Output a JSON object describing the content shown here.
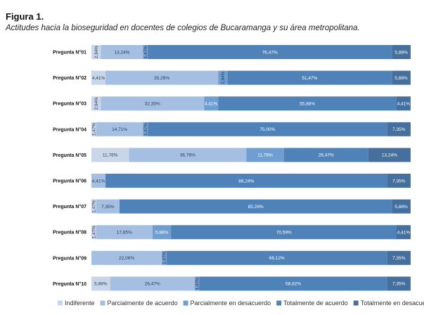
{
  "figure": {
    "label": "Figura 1.",
    "caption": "Actitudes hacia la bioseguridad en docentes de colegios de Bucaramanga y su área metropolitana."
  },
  "colors": {
    "Indiferente": "#c9d6ea",
    "Parcialmente de acuerdo": "#a4bfe2",
    "Parcialmente en desacuerdo": "#6f9fd2",
    "Totalmente de acuerdo": "#4e82b8",
    "Totalmente en desacuerdo": "#456f9c"
  },
  "chart_data": {
    "type": "bar",
    "orientation": "horizontal",
    "stacked": "percent",
    "categories": [
      "Pregunta N°01",
      "Pregunta N°02",
      "Pregunta N°03",
      "Pregunta N°04",
      "Pregunta N°05",
      "Pregunta N°06",
      "Pregunta N°07",
      "Pregunta N°08",
      "Pregunta N°09",
      "Pregunta N°10"
    ],
    "series": [
      {
        "name": "Indiferente",
        "values": [
          2.94,
          4.41,
          2.94,
          1.47,
          11.76,
          0,
          1.47,
          1.47,
          0,
          5.88
        ],
        "labels": [
          "2,94%",
          "4,41%",
          "2,94%",
          "1,47%",
          "11,76%",
          "",
          "1,47%",
          "1,47%",
          "",
          "5,88%"
        ]
      },
      {
        "name": "Parcialmente de acuerdo",
        "values": [
          13.24,
          35.29,
          32.35,
          14.71,
          36.76,
          4.41,
          7.35,
          17.65,
          22.06,
          26.47
        ],
        "labels": [
          "13,24%",
          "35,29%",
          "32,35%",
          "14,71%",
          "36,76%",
          "4,41%",
          "7,35%",
          "17,65%",
          "22,06%",
          "26,47%"
        ]
      },
      {
        "name": "Parcialmente en desacuerdo",
        "values": [
          1.47,
          2.94,
          4.41,
          1.47,
          11.76,
          0,
          0,
          5.88,
          1.47,
          1.47
        ],
        "labels": [
          "1,47%",
          "2,94%",
          "4,41%",
          "1,47%",
          "11,76%",
          "",
          "",
          "5,88%",
          "1,47%",
          "1,47%"
        ]
      },
      {
        "name": "Totalmente de acuerdo",
        "values": [
          76.47,
          51.47,
          55.88,
          75.0,
          26.47,
          88.24,
          85.29,
          70.59,
          69.12,
          58.82
        ],
        "labels": [
          "76,47%",
          "51,47%",
          "55,88%",
          "75,00%",
          "26,47%",
          "88,24%",
          "85,29%",
          "70,59%",
          "69,12%",
          "58,82%"
        ]
      },
      {
        "name": "Totalmente en desacuerdo",
        "values": [
          5.88,
          5.88,
          4.41,
          7.35,
          13.24,
          7.35,
          5.88,
          4.41,
          7.35,
          7.35
        ],
        "labels": [
          "5,88%",
          "5,88%",
          "4,41%",
          "7,35%",
          "13,24%",
          "7,35%",
          "5,88%",
          "4,41%",
          "7,35%",
          "7,35%"
        ]
      }
    ],
    "xlim": [
      0,
      100
    ],
    "grid": false,
    "legend_position": "bottom"
  }
}
